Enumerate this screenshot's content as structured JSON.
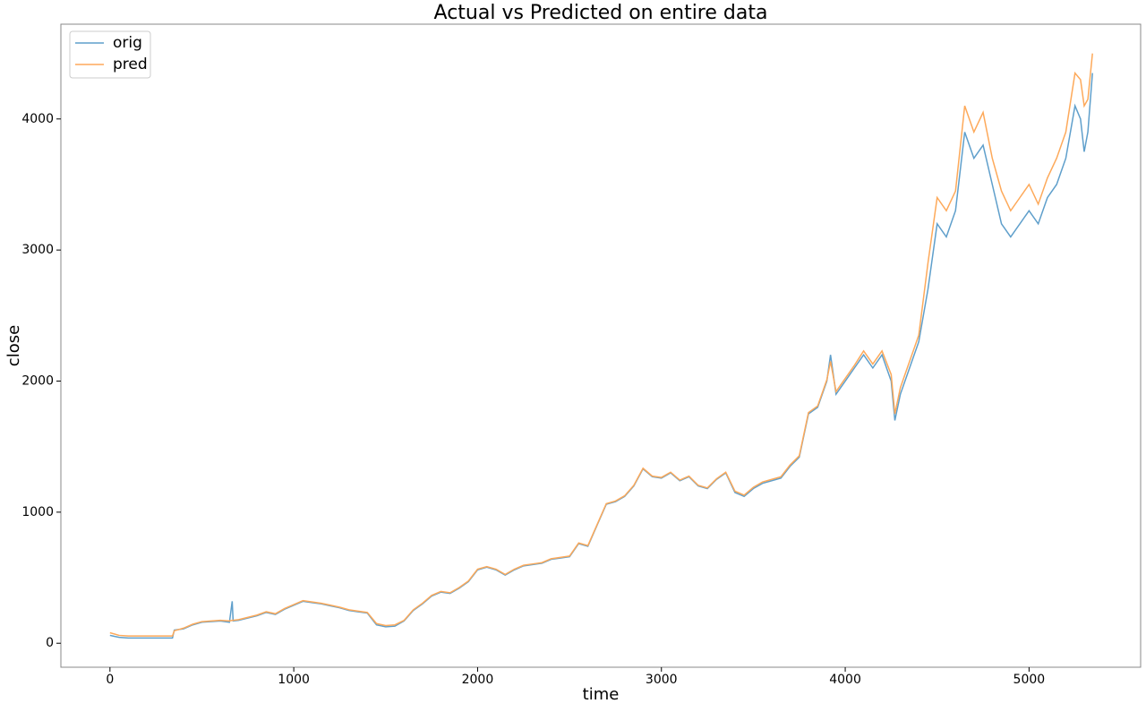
{
  "chart_data": {
    "type": "line",
    "title": "Actual vs Predicted on entire data",
    "x_label": "time",
    "y_label": "close",
    "x": [
      0,
      50,
      100,
      340,
      350,
      400,
      450,
      500,
      600,
      650,
      665,
      670,
      700,
      800,
      850,
      900,
      950,
      1000,
      1050,
      1100,
      1150,
      1200,
      1250,
      1300,
      1350,
      1400,
      1450,
      1500,
      1550,
      1600,
      1650,
      1700,
      1750,
      1800,
      1850,
      1900,
      1950,
      2000,
      2050,
      2100,
      2150,
      2200,
      2250,
      2300,
      2350,
      2400,
      2450,
      2500,
      2550,
      2600,
      2650,
      2700,
      2750,
      2800,
      2850,
      2900,
      2950,
      3000,
      3050,
      3100,
      3150,
      3200,
      3250,
      3300,
      3350,
      3400,
      3450,
      3500,
      3550,
      3600,
      3650,
      3700,
      3750,
      3800,
      3850,
      3900,
      3920,
      3950,
      4000,
      4050,
      4100,
      4150,
      4200,
      4250,
      4270,
      4300,
      4350,
      4400,
      4450,
      4500,
      4550,
      4600,
      4650,
      4700,
      4750,
      4800,
      4850,
      4900,
      4950,
      5000,
      5050,
      5100,
      5150,
      5200,
      5250,
      5280,
      5300,
      5320,
      5345
    ],
    "series": [
      {
        "name": "orig",
        "color": "#5f9fcb",
        "values": [
          60,
          45,
          40,
          40,
          100,
          110,
          140,
          160,
          170,
          160,
          320,
          170,
          175,
          210,
          235,
          220,
          260,
          290,
          320,
          310,
          300,
          285,
          270,
          250,
          240,
          230,
          140,
          125,
          130,
          170,
          250,
          300,
          360,
          390,
          380,
          420,
          470,
          560,
          580,
          560,
          520,
          560,
          590,
          600,
          610,
          640,
          650,
          660,
          760,
          740,
          900,
          1060,
          1080,
          1120,
          1200,
          1330,
          1270,
          1260,
          1300,
          1240,
          1270,
          1200,
          1180,
          1250,
          1300,
          1150,
          1120,
          1180,
          1220,
          1240,
          1260,
          1350,
          1420,
          1750,
          1800,
          2000,
          2200,
          1900,
          2000,
          2100,
          2200,
          2100,
          2200,
          2000,
          1700,
          1900,
          2100,
          2300,
          2700,
          3200,
          3100,
          3300,
          3900,
          3700,
          3800,
          3500,
          3200,
          3100,
          3200,
          3300,
          3200,
          3400,
          3500,
          3700,
          4100,
          4000,
          3750,
          3900,
          4350
        ]
      },
      {
        "name": "pred",
        "color": "#fda95a",
        "values": [
          80,
          60,
          55,
          55,
          95,
          115,
          145,
          165,
          175,
          170,
          175,
          175,
          180,
          215,
          240,
          225,
          265,
          295,
          325,
          315,
          305,
          290,
          275,
          255,
          245,
          235,
          150,
          135,
          140,
          175,
          255,
          305,
          365,
          395,
          385,
          425,
          475,
          565,
          585,
          565,
          525,
          565,
          595,
          605,
          615,
          645,
          655,
          665,
          765,
          745,
          905,
          1065,
          1085,
          1125,
          1205,
          1335,
          1275,
          1265,
          1305,
          1245,
          1275,
          1205,
          1185,
          1255,
          1305,
          1160,
          1130,
          1190,
          1230,
          1250,
          1270,
          1360,
          1430,
          1760,
          1810,
          2010,
          2150,
          1920,
          2020,
          2120,
          2230,
          2130,
          2230,
          2050,
          1750,
          1950,
          2150,
          2350,
          2900,
          3400,
          3300,
          3450,
          4100,
          3900,
          4050,
          3700,
          3450,
          3300,
          3400,
          3500,
          3350,
          3550,
          3700,
          3900,
          4350,
          4300,
          4100,
          4150,
          4500
        ]
      }
    ],
    "xlim": [
      -267,
      5607
    ],
    "xticks": [
      0,
      1000,
      2000,
      3000,
      4000,
      5000
    ],
    "ylim": [
      -183,
      4723
    ],
    "yticks": [
      0,
      1000,
      2000,
      3000,
      4000
    ],
    "legend": "upper left",
    "grid": false
  }
}
